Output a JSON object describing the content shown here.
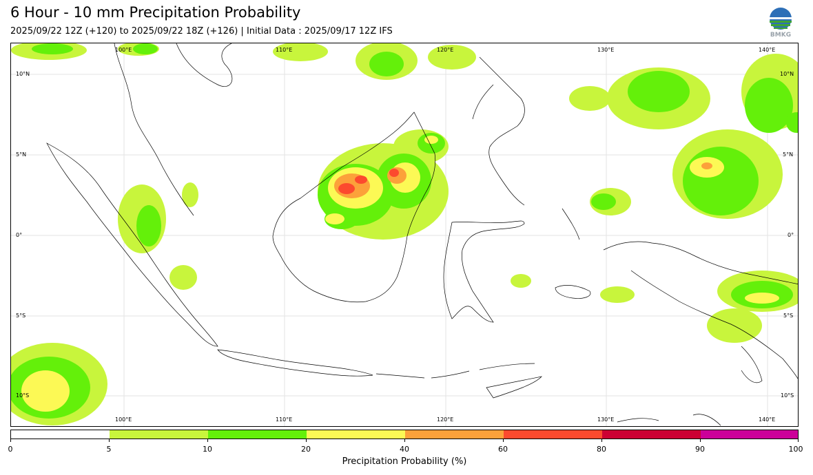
{
  "title": "6 Hour - 10 mm Precipitation Probability",
  "subtitle": "2025/09/22 12Z (+120) to 2025/09/22 18Z (+126) | Initial Data : 2025/09/17 12Z IFS",
  "logo": {
    "text": "BMKG",
    "icon": "bmkg-globe-logo"
  },
  "map": {
    "lon_range": [
      93,
      143
    ],
    "lat_range": [
      -12,
      12
    ],
    "lon_labels_top": [
      "100°E",
      "110°E",
      "120°E",
      "130°E",
      "140°E"
    ],
    "lon_labels_bottom": [
      "100°E",
      "110°E",
      "120°E",
      "130°E",
      "140°E"
    ],
    "lat_labels_left": [
      "10°N",
      "5°N",
      "0°",
      "5°S",
      "10°S"
    ],
    "lat_labels_right": [
      "10°N",
      "5°N",
      "0°",
      "5°S",
      "10°S"
    ],
    "gridlines": true
  },
  "colorbar": {
    "label": "Precipitation Probability (%)",
    "ticks": [
      "0",
      "5",
      "10",
      "20",
      "40",
      "60",
      "80",
      "90",
      "100"
    ],
    "colors": [
      "#ffffff",
      "#c8f53c",
      "#64f00a",
      "#fcf955",
      "#fca13a",
      "#fc4a2e",
      "#cc0033",
      "#cc0099"
    ]
  }
}
